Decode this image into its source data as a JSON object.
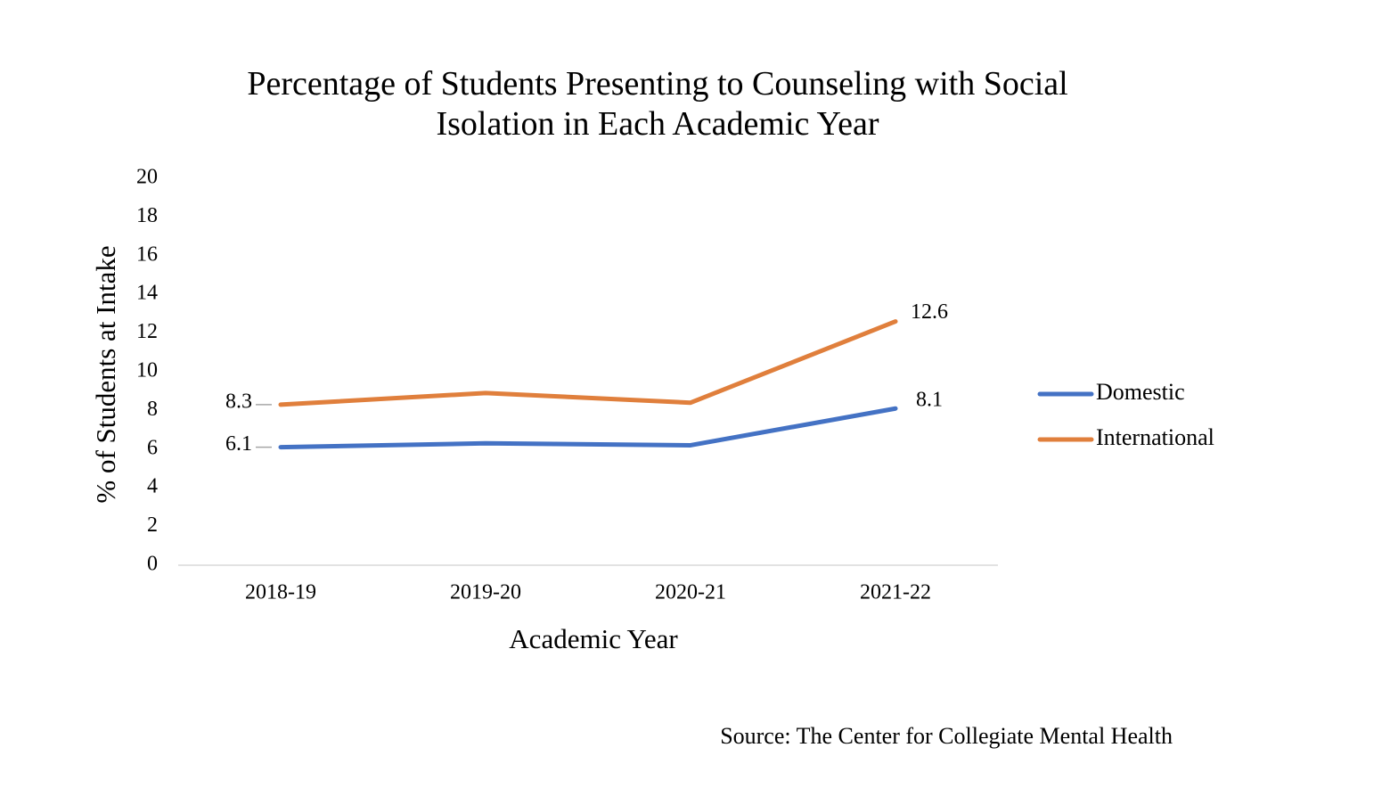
{
  "chart_data": {
    "type": "line",
    "title": "Percentage of Students Presenting to Counseling with Social Isolation in Each Academic Year",
    "x_label": "Academic Year",
    "y_label": "% of Students at Intake",
    "source": "Source: The Center for Collegiate Mental Health",
    "categories": [
      "2018-19",
      "2019-20",
      "2020-21",
      "2021-22"
    ],
    "series": [
      {
        "name": "Domestic",
        "color": "#4472c4",
        "values": [
          6.1,
          6.3,
          6.2,
          8.1
        ],
        "value_labels": [
          "6.1",
          null,
          null,
          "8.1"
        ]
      },
      {
        "name": "International",
        "color": "#e07f3c",
        "values": [
          8.3,
          8.9,
          8.4,
          12.6
        ],
        "value_labels": [
          "8.3",
          null,
          null,
          "12.6"
        ]
      }
    ],
    "ylim": [
      0,
      20
    ],
    "yticks": [
      0,
      2,
      4,
      6,
      8,
      10,
      12,
      14,
      16,
      18,
      20
    ],
    "grid": false,
    "legend": "right"
  }
}
